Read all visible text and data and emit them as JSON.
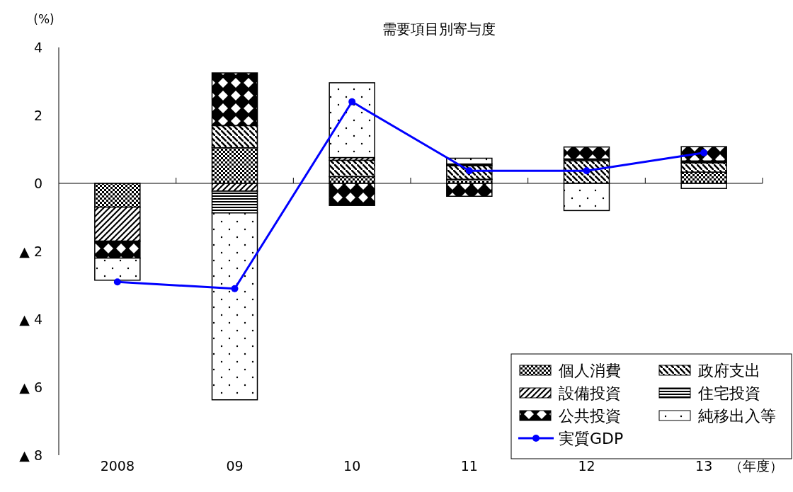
{
  "chart_data": {
    "type": "bar",
    "stacked": true,
    "title": "需要項目別寄与度",
    "ylabel": "(%)",
    "xlabel": "（年度）",
    "categories": [
      "2008",
      "09",
      "10",
      "11",
      "12",
      "13"
    ],
    "series": [
      {
        "name": "個人消費",
        "color": "#000000",
        "values": [
          -0.7,
          1.05,
          0.2,
          0.12,
          null,
          0.33
        ]
      },
      {
        "name": "政府支出",
        "color": "#000000",
        "values": [
          null,
          0.65,
          0.48,
          0.4,
          0.67,
          0.27
        ]
      },
      {
        "name": "設備投資",
        "color": "#000000",
        "values": [
          -1.0,
          -0.23,
          0.08,
          null,
          null,
          null
        ]
      },
      {
        "name": "住宅投資",
        "color": "#000000",
        "values": [
          null,
          -0.64,
          null,
          0.05,
          0.05,
          0.06
        ]
      },
      {
        "name": "公共投資",
        "color": "#000000",
        "values": [
          -0.5,
          1.55,
          -0.65,
          -0.38,
          0.35,
          0.42
        ]
      },
      {
        "name": "純移出入等",
        "color": "#000000",
        "values": [
          -0.65,
          -5.5,
          2.2,
          0.17,
          -0.8,
          -0.15
        ]
      },
      {
        "name": "実質GDP",
        "type": "line",
        "color": "#0000ff",
        "marker": "circle",
        "values": [
          -2.9,
          -3.1,
          2.4,
          0.37,
          0.37,
          0.9
        ]
      }
    ],
    "ylim": [
      -8,
      4
    ],
    "yticks": [
      4,
      2,
      0,
      {
        "value": -2,
        "label": "▲ 2"
      },
      {
        "value": -4,
        "label": "▲ 4"
      },
      {
        "value": -6,
        "label": "▲ 6"
      },
      {
        "value": -8,
        "label": "▲ 8"
      }
    ],
    "legend": "bottom right"
  }
}
